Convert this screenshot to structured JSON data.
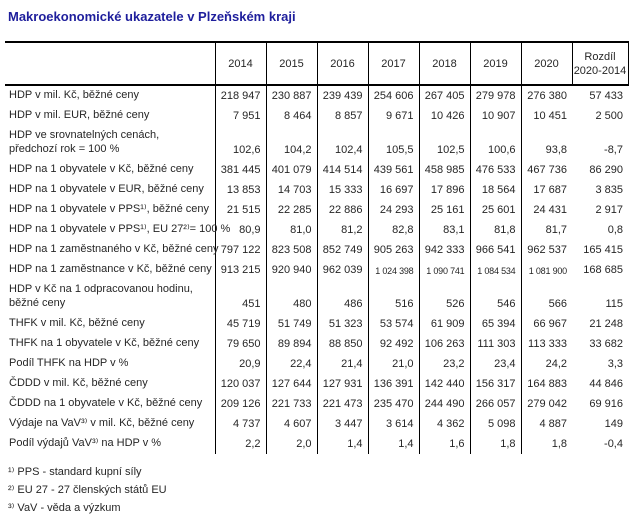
{
  "title": "Makroekonomické ukazatele v Plzeňském kraji",
  "table": {
    "years": [
      "2014",
      "2015",
      "2016",
      "2017",
      "2018",
      "2019",
      "2020"
    ],
    "diff_header": {
      "line1": "Rozdíl",
      "line2": "2020-2014"
    },
    "rows": [
      {
        "label": "HDP v mil. Kč, běžné ceny",
        "values": [
          "218 947",
          "230 887",
          "239 439",
          "254 606",
          "267 405",
          "279 978",
          "276 380",
          "57 433"
        ]
      },
      {
        "label": "HDP v mil. EUR, běžné ceny",
        "values": [
          "7 951",
          "8 464",
          "8 857",
          "9 671",
          "10 426",
          "10 907",
          "10 451",
          "2 500"
        ]
      },
      {
        "label": "HDP ve srovnatelných cenách,",
        "label2": "předchozí rok = 100 %",
        "values": [
          "102,6",
          "104,2",
          "102,4",
          "105,5",
          "102,5",
          "100,6",
          "93,8",
          "-8,7"
        ]
      },
      {
        "label": "HDP na 1 obyvatele v Kč, běžné ceny",
        "values": [
          "381 445",
          "401 079",
          "414 514",
          "439 561",
          "458 985",
          "476 533",
          "467 736",
          "86 290"
        ]
      },
      {
        "label": "HDP na 1 obyvatele v EUR, běžné ceny",
        "values": [
          "13 853",
          "14 703",
          "15 333",
          "16 697",
          "17 896",
          "18 564",
          "17 687",
          "3 835"
        ]
      },
      {
        "label": "HDP na 1 obyvatele v PPS¹⁾, běžné ceny",
        "values": [
          "21 515",
          "22 285",
          "22 886",
          "24 293",
          "25 161",
          "25 601",
          "24 431",
          "2 917"
        ]
      },
      {
        "label": "HDP na 1 obyvatele v PPS¹⁾, EU 27²⁾= 100 %",
        "values": [
          "80,9",
          "81,0",
          "81,2",
          "82,8",
          "83,1",
          "81,8",
          "81,7",
          "0,8"
        ]
      },
      {
        "label": "HDP na 1 zaměstnaného v Kč, běžné ceny",
        "values": [
          "797 122",
          "823 508",
          "852 749",
          "905 263",
          "942 333",
          "966 541",
          "962 537",
          "165 415"
        ]
      },
      {
        "label": "HDP na 1 zaměstnance v Kč, běžné ceny",
        "values": [
          "913 215",
          "920 940",
          "962 039",
          "1 024 398",
          "1 090 741",
          "1 084 534",
          "1 081 900",
          "168 685"
        ]
      },
      {
        "label": "HDP v Kč na 1 odpracovanou hodinu,",
        "label2": "běžné ceny",
        "values": [
          "451",
          "480",
          "486",
          "516",
          "526",
          "546",
          "566",
          "115"
        ]
      },
      {
        "label": "THFK v mil. Kč, běžné ceny",
        "values": [
          "45 719",
          "51 749",
          "51 323",
          "53 574",
          "61 909",
          "65 394",
          "66 967",
          "21 248"
        ]
      },
      {
        "label": "THFK na 1 obyvatele v Kč, běžné ceny",
        "values": [
          "79 650",
          "89 894",
          "88 850",
          "92 492",
          "106 263",
          "111 303",
          "113 333",
          "33 682"
        ]
      },
      {
        "label": "Podíl THFK na HDP v %",
        "values": [
          "20,9",
          "22,4",
          "21,4",
          "21,0",
          "23,2",
          "23,4",
          "24,2",
          "3,3"
        ]
      },
      {
        "label": "ČDDD v mil. Kč, běžné ceny",
        "values": [
          "120 037",
          "127 644",
          "127 931",
          "136 391",
          "142 440",
          "156 317",
          "164 883",
          "44 846"
        ]
      },
      {
        "label": "ČDDD na 1 obyvatele v Kč, běžné ceny",
        "values": [
          "209 126",
          "221 733",
          "221 473",
          "235 470",
          "244 490",
          "266 057",
          "279 042",
          "69 916"
        ]
      },
      {
        "label": "Výdaje na VaV³⁾ v mil. Kč, běžné ceny",
        "values": [
          "4 737",
          "4 607",
          "3 447",
          "3 614",
          "4 362",
          "5 098",
          "4 887",
          "149"
        ]
      },
      {
        "label": "Podíl výdajů VaV³⁾ na HDP v %",
        "values": [
          "2,2",
          "2,0",
          "1,4",
          "1,4",
          "1,6",
          "1,8",
          "1,8",
          "-0,4"
        ]
      }
    ]
  },
  "footnotes": [
    "¹⁾ PPS - standard kupní síly",
    "²⁾ EU 27 - 27 členských států EU",
    "³⁾ VaV - věda a výzkum"
  ],
  "colors": {
    "title_blue": "#1e1e9c",
    "table_border": "#000000",
    "text": "#262626",
    "background": "#ffffff"
  }
}
